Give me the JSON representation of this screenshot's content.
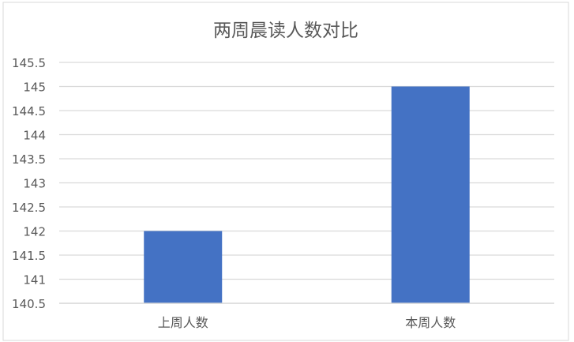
{
  "chart_data": {
    "type": "bar",
    "title": "两周晨读人数对比",
    "categories": [
      "上周人数",
      "本周人数"
    ],
    "values": [
      142,
      145
    ],
    "ylim": [
      140.5,
      145.5
    ],
    "yticks": [
      "140.5",
      "141",
      "141.5",
      "142",
      "142.5",
      "143",
      "143.5",
      "144",
      "144.5",
      "145",
      "145.5"
    ],
    "grid": true,
    "bar_color": "#4472C4",
    "grid_color": "#D9D9D9",
    "text_color": "#595959"
  }
}
